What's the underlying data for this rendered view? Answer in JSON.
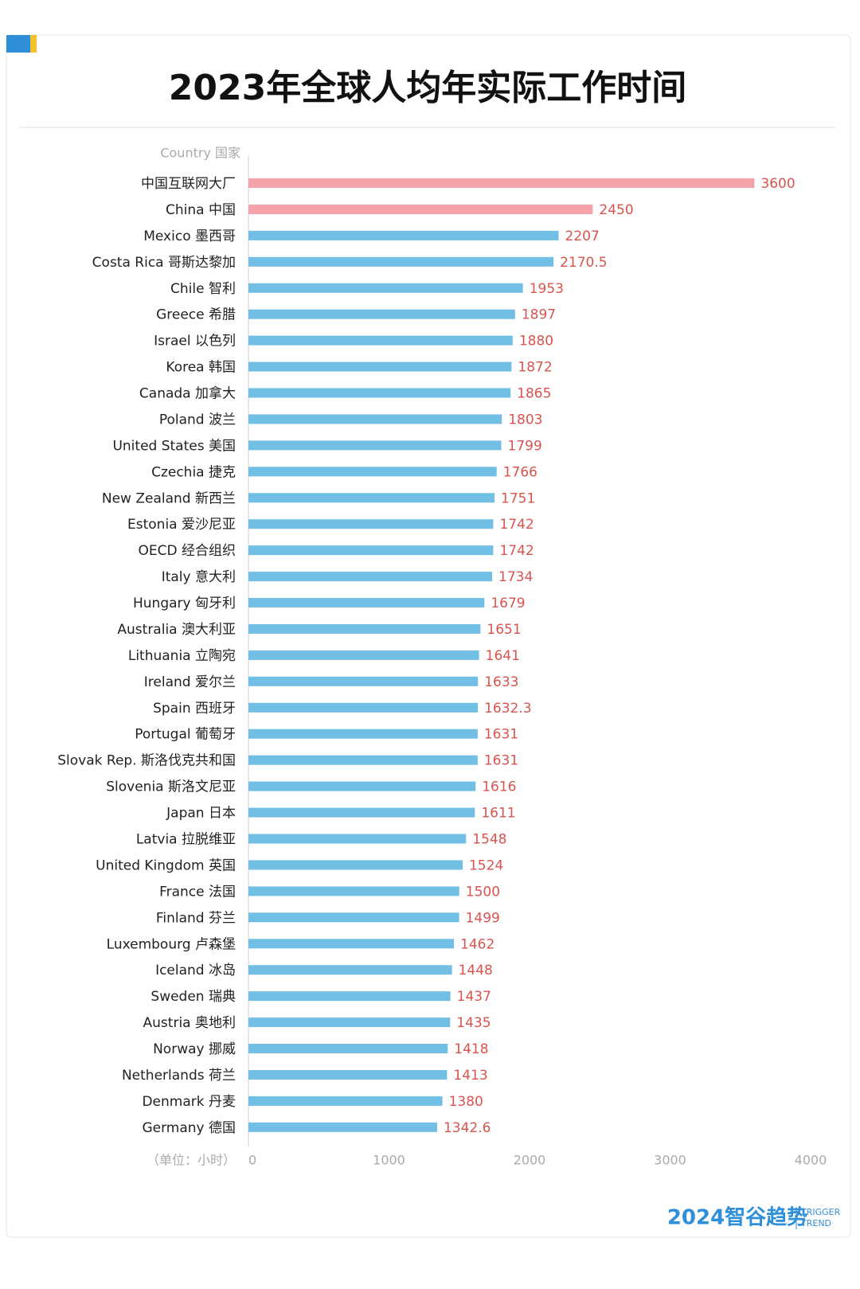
{
  "chart_data": {
    "type": "hbar",
    "title": "2023年全球人均年实际工作时间",
    "y_axis_label": "Country 国家",
    "x_axis_label": "（单位：小时）",
    "categories": [
      "中国互联网大厂",
      "China 中国",
      "Mexico 墨西哥",
      "Costa Rica 哥斯达黎加",
      "Chile 智利",
      "Greece 希腊",
      "Israel 以色列",
      "Korea 韩国",
      "Canada 加拿大",
      "Poland 波兰",
      "United States 美国",
      "Czechia 捷克",
      "New Zealand 新西兰",
      "Estonia 爱沙尼亚",
      "OECD 经合组织",
      "Italy 意大利",
      "Hungary 匈牙利",
      "Australia 澳大利亚",
      "Lithuania 立陶宛",
      "Ireland 爱尔兰",
      "Spain 西班牙",
      "Portugal 葡萄牙",
      "Slovak Rep. 斯洛伐克共和国",
      "Slovenia 斯洛文尼亚",
      "Japan 日本",
      "Latvia 拉脱维亚",
      "United Kingdom 英国",
      "France 法国",
      "Finland 芬兰",
      "Luxembourg 卢森堡",
      "Iceland 冰岛",
      "Sweden 瑞典",
      "Austria 奥地利",
      "Norway 挪威",
      "Netherlands 荷兰",
      "Denmark 丹麦",
      "Germany 德国"
    ],
    "values": [
      3600,
      2450,
      2207,
      2170.5,
      1953,
      1897,
      1880,
      1872,
      1865,
      1803,
      1799,
      1766,
      1751,
      1742,
      1742,
      1734,
      1679,
      1651,
      1641,
      1633,
      1632.3,
      1631,
      1631,
      1616,
      1611,
      1548,
      1524,
      1500,
      1499,
      1462,
      1448,
      1437,
      1435,
      1418,
      1413,
      1380,
      1342.6
    ],
    "colors": [
      "#f4a3ab",
      "#f4a3ab",
      "#72bfe6",
      "#72bfe6",
      "#72bfe6",
      "#72bfe6",
      "#72bfe6",
      "#72bfe6",
      "#72bfe6",
      "#72bfe6",
      "#72bfe6",
      "#72bfe6",
      "#72bfe6",
      "#72bfe6",
      "#72bfe6",
      "#72bfe6",
      "#72bfe6",
      "#72bfe6",
      "#72bfe6",
      "#72bfe6",
      "#72bfe6",
      "#72bfe6",
      "#72bfe6",
      "#72bfe6",
      "#72bfe6",
      "#72bfe6",
      "#72bfe6",
      "#72bfe6",
      "#72bfe6",
      "#72bfe6",
      "#72bfe6",
      "#72bfe6",
      "#72bfe6",
      "#72bfe6",
      "#72bfe6",
      "#72bfe6",
      "#72bfe6"
    ],
    "value_label_color": "#d9534f",
    "xlim": [
      0,
      4000
    ],
    "xticks": [
      0,
      1000,
      2000,
      3000,
      4000
    ],
    "grid": false,
    "footer_brand": "2024智谷趋势",
    "footer_brand_en": [
      "TRIGGER",
      "TREND"
    ]
  }
}
